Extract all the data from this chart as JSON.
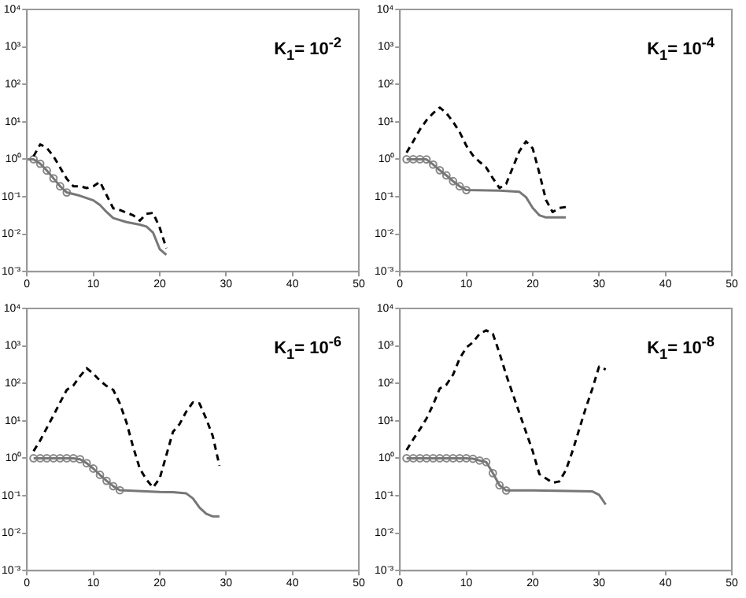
{
  "chart_data": [
    {
      "type": "line",
      "title": "K$_{1}$= 10$^{-2}$",
      "log": true,
      "xlim": [
        0,
        50
      ],
      "xticks": [
        0,
        10,
        20,
        30,
        40,
        50
      ],
      "ylim": [
        0.001,
        10000
      ],
      "yticks": [
        {
          "value": 0.001,
          "label": "10⁻³"
        },
        {
          "value": 0.01,
          "label": "10⁻²"
        },
        {
          "value": 0.1,
          "label": "10⁻¹"
        },
        {
          "value": 1,
          "label": "10⁰"
        },
        {
          "value": 10,
          "label": "10¹"
        },
        {
          "value": 100,
          "label": "10²"
        },
        {
          "value": 1000,
          "label": "10³"
        },
        {
          "value": 10000,
          "label": "10⁴"
        }
      ],
      "series": [
        {
          "color": "#000000",
          "line_style": "dashed",
          "x": [
            1,
            2,
            3,
            4,
            5,
            6,
            7,
            8,
            9,
            10,
            11,
            12,
            13,
            14,
            16,
            17,
            18,
            19,
            20,
            21
          ],
          "values": [
            1.2,
            2.5,
            2,
            1.2,
            0.6,
            0.3,
            0.19,
            0.19,
            0.17,
            0.19,
            0.25,
            0.11,
            0.049,
            0.044,
            0.032,
            0.023,
            0.035,
            0.037,
            0.015,
            0.0042
          ]
        },
        {
          "color": "#777777",
          "line_style": "solid",
          "x": [
            0,
            1,
            2,
            3,
            4,
            5,
            6,
            8,
            10,
            11,
            12,
            13,
            15,
            17,
            18,
            19,
            20,
            21
          ],
          "values": [
            1,
            1,
            0.76,
            0.5,
            0.31,
            0.19,
            0.13,
            0.106,
            0.08,
            0.06,
            0.039,
            0.027,
            0.021,
            0.018,
            0.016,
            0.011,
            0.004,
            0.0028
          ]
        },
        {
          "type": "scatter",
          "color": "#888888",
          "marker": "circle",
          "x": [
            1,
            2,
            3,
            4,
            5,
            6
          ],
          "values": [
            1,
            0.76,
            0.5,
            0.31,
            0.19,
            0.13
          ]
        }
      ]
    },
    {
      "type": "line",
      "title": "K$_{1}$= 10$^{-4}$",
      "log": true,
      "xlim": [
        0,
        50
      ],
      "xticks": [
        0,
        10,
        20,
        30,
        40,
        50
      ],
      "ylim": [
        0.001,
        10000
      ],
      "yticks": [
        {
          "value": 0.001,
          "label": "10⁻³"
        },
        {
          "value": 0.01,
          "label": "10⁻²"
        },
        {
          "value": 0.1,
          "label": "10⁻¹"
        },
        {
          "value": 1,
          "label": "10⁰"
        },
        {
          "value": 10,
          "label": "10¹"
        },
        {
          "value": 100,
          "label": "10²"
        },
        {
          "value": 1000,
          "label": "10³"
        },
        {
          "value": 10000,
          "label": "10⁴"
        }
      ],
      "series": [
        {
          "color": "#000000",
          "line_style": "dashed",
          "x": [
            1,
            2,
            3,
            4,
            5,
            6,
            7,
            8,
            9,
            10,
            11,
            12,
            13,
            14,
            15,
            16,
            17,
            18,
            19,
            20,
            21,
            22,
            23,
            24,
            25
          ],
          "values": [
            1.5,
            3,
            6.2,
            11,
            17,
            24,
            17,
            10,
            5.3,
            2.3,
            1.26,
            0.85,
            0.6,
            0.31,
            0.17,
            0.22,
            0.6,
            1.65,
            3,
            1.95,
            0.43,
            0.082,
            0.039,
            0.05,
            0.053
          ]
        },
        {
          "color": "#777777",
          "line_style": "solid",
          "x": [
            1,
            4,
            5,
            6,
            7,
            8,
            9,
            10,
            15,
            18,
            19,
            20,
            21,
            22,
            25
          ],
          "values": [
            1,
            0.99,
            0.72,
            0.51,
            0.37,
            0.26,
            0.19,
            0.15,
            0.145,
            0.135,
            0.097,
            0.05,
            0.032,
            0.028,
            0.028
          ]
        },
        {
          "type": "scatter",
          "color": "#888888",
          "marker": "circle",
          "x": [
            1,
            2,
            3,
            4,
            5,
            6,
            7,
            8,
            9,
            10
          ],
          "values": [
            1,
            1,
            1,
            0.99,
            0.72,
            0.51,
            0.37,
            0.26,
            0.19,
            0.15
          ]
        }
      ]
    },
    {
      "type": "line",
      "title": "K$_{1}$= 10$^{-6}$",
      "log": true,
      "xlim": [
        0,
        50
      ],
      "xticks": [
        0,
        10,
        20,
        30,
        40,
        50
      ],
      "ylim": [
        0.001,
        10000
      ],
      "yticks": [
        {
          "value": 0.001,
          "label": "10⁻³"
        },
        {
          "value": 0.01,
          "label": "10⁻²"
        },
        {
          "value": 0.1,
          "label": "10⁻¹"
        },
        {
          "value": 1,
          "label": "10⁰"
        },
        {
          "value": 10,
          "label": "10¹"
        },
        {
          "value": 100,
          "label": "10²"
        },
        {
          "value": 1000,
          "label": "10³"
        },
        {
          "value": 10000,
          "label": "10⁴"
        }
      ],
      "series": [
        {
          "color": "#000000",
          "line_style": "dashed",
          "x": [
            1,
            2,
            3,
            4,
            5,
            6,
            7,
            8,
            9,
            10,
            11,
            12,
            13,
            14,
            15,
            16,
            17,
            18,
            19,
            20,
            21,
            22,
            23,
            24,
            25,
            26,
            27,
            28,
            29
          ],
          "values": [
            1.55,
            3,
            6.5,
            14,
            31,
            67,
            88,
            155,
            255,
            180,
            118,
            85,
            67,
            29,
            9,
            2,
            0.53,
            0.27,
            0.165,
            0.29,
            1.2,
            5.1,
            8.2,
            17.6,
            31,
            29,
            11.4,
            3.9,
            0.63
          ]
        },
        {
          "color": "#777777",
          "line_style": "solid",
          "x": [
            1,
            7,
            8,
            9,
            10,
            11,
            12,
            13,
            14,
            20,
            22,
            24,
            25,
            26,
            27,
            28,
            29
          ],
          "values": [
            1,
            1,
            0.94,
            0.74,
            0.53,
            0.36,
            0.25,
            0.18,
            0.14,
            0.126,
            0.125,
            0.115,
            0.085,
            0.048,
            0.033,
            0.028,
            0.028
          ]
        },
        {
          "type": "scatter",
          "color": "#888888",
          "marker": "circle",
          "x": [
            1,
            2,
            3,
            4,
            5,
            6,
            7,
            8,
            9,
            10,
            11,
            12,
            13,
            14
          ],
          "values": [
            1,
            1,
            1,
            1,
            1,
            1,
            1,
            0.94,
            0.74,
            0.53,
            0.36,
            0.25,
            0.18,
            0.14
          ]
        }
      ]
    },
    {
      "type": "line",
      "title": "K$_{1}$= 10$^{-8}$",
      "log": true,
      "xlim": [
        0,
        50
      ],
      "xticks": [
        0,
        10,
        20,
        30,
        40,
        50
      ],
      "ylim": [
        0.001,
        10000
      ],
      "yticks": [
        {
          "value": 0.001,
          "label": "10⁻³"
        },
        {
          "value": 0.01,
          "label": "10⁻²"
        },
        {
          "value": 0.1,
          "label": "10⁻¹"
        },
        {
          "value": 1,
          "label": "10⁰"
        },
        {
          "value": 10,
          "label": "10¹"
        },
        {
          "value": 100,
          "label": "10²"
        },
        {
          "value": 1000,
          "label": "10³"
        },
        {
          "value": 10000,
          "label": "10⁴"
        }
      ],
      "series": [
        {
          "color": "#000000",
          "line_style": "dashed",
          "x": [
            1,
            2,
            3,
            4,
            5,
            6,
            7,
            8,
            9,
            10,
            11,
            12,
            13,
            14,
            15,
            16,
            17,
            18,
            19,
            20,
            21,
            22,
            23,
            24,
            25,
            26,
            27,
            28,
            29,
            30,
            31
          ],
          "values": [
            1.65,
            3.2,
            5.9,
            11.5,
            27,
            73,
            92,
            170,
            460,
            900,
            1250,
            2100,
            2600,
            2100,
            640,
            170,
            52,
            16,
            5,
            1.55,
            0.38,
            0.29,
            0.22,
            0.24,
            0.48,
            1.55,
            5.9,
            22,
            73,
            280,
            235
          ]
        },
        {
          "color": "#777777",
          "line_style": "solid",
          "x": [
            1,
            10,
            11,
            12,
            13,
            14,
            15,
            16,
            20,
            29,
            30,
            31
          ],
          "values": [
            1,
            1,
            0.97,
            0.87,
            0.79,
            0.4,
            0.19,
            0.138,
            0.138,
            0.13,
            0.106,
            0.058
          ]
        },
        {
          "type": "scatter",
          "color": "#888888",
          "marker": "circle",
          "x": [
            1,
            2,
            3,
            4,
            5,
            6,
            7,
            8,
            9,
            10,
            11,
            12,
            13,
            14,
            15,
            16
          ],
          "values": [
            1,
            1,
            1,
            1,
            1,
            1,
            1,
            1,
            1,
            1,
            0.97,
            0.87,
            0.79,
            0.4,
            0.19,
            0.138
          ]
        }
      ]
    }
  ]
}
